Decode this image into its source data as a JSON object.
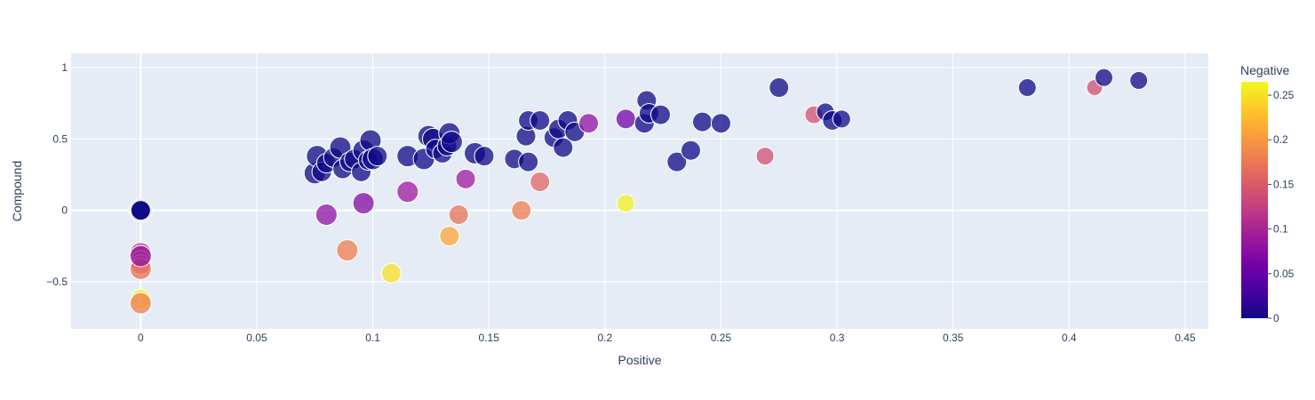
{
  "chart_data": {
    "type": "scatter",
    "title": "",
    "xlabel": "Positive",
    "ylabel": "Compound",
    "xlim": [
      -0.03,
      0.46
    ],
    "ylim": [
      -0.83,
      1.1
    ],
    "xticks": [
      0,
      0.05,
      0.1,
      0.15,
      0.2,
      0.25,
      0.3,
      0.35,
      0.4,
      0.45
    ],
    "xtick_labels": [
      "0",
      "0.05",
      "0.1",
      "0.15",
      "0.2",
      "0.25",
      "0.3",
      "0.35",
      "0.4",
      "0.45"
    ],
    "yticks": [
      -0.5,
      0,
      0.5,
      1
    ],
    "ytick_labels": [
      "−0.5",
      "0",
      "0.5",
      "1"
    ],
    "grid": true,
    "colorbar": {
      "title": "Negative",
      "range": [
        0,
        0.265
      ],
      "ticks": [
        0,
        0.05,
        0.1,
        0.15,
        0.2,
        0.25
      ],
      "tick_labels": [
        "0",
        "0.05",
        "0.1",
        "0.15",
        "0.2",
        "0.25"
      ],
      "colorscale": [
        "#0d0887",
        "#46039f",
        "#7201a8",
        "#9c179e",
        "#bd3786",
        "#d8576b",
        "#ed7953",
        "#fb9f3a",
        "#fdca26",
        "#f0f921"
      ]
    },
    "points": [
      {
        "x": 0,
        "y": 0,
        "neg": 0,
        "size": 13
      },
      {
        "x": 0,
        "y": 0,
        "neg": 0,
        "size": 12
      },
      {
        "x": 0,
        "y": 0,
        "neg": 0,
        "size": 11
      },
      {
        "x": 0,
        "y": -0.3,
        "neg": 0.12,
        "size": 12
      },
      {
        "x": 0,
        "y": -0.35,
        "neg": 0.17,
        "size": 11
      },
      {
        "x": 0,
        "y": -0.38,
        "neg": 0.16,
        "size": 11
      },
      {
        "x": 0,
        "y": -0.41,
        "neg": 0.17,
        "size": 12
      },
      {
        "x": 0,
        "y": -0.32,
        "neg": 0.08,
        "size": 12
      },
      {
        "x": 0,
        "y": -0.62,
        "neg": 0.26,
        "size": 11
      },
      {
        "x": 0,
        "y": -0.65,
        "neg": 0.18,
        "size": 12
      },
      {
        "x": 0.075,
        "y": 0.26,
        "neg": 0,
        "size": 12
      },
      {
        "x": 0.076,
        "y": 0.38,
        "neg": 0,
        "size": 12
      },
      {
        "x": 0.078,
        "y": 0.27,
        "neg": 0,
        "size": 11
      },
      {
        "x": 0.08,
        "y": 0.33,
        "neg": 0,
        "size": 11
      },
      {
        "x": 0.083,
        "y": 0.37,
        "neg": 0,
        "size": 11
      },
      {
        "x": 0.086,
        "y": 0.44,
        "neg": 0,
        "size": 12
      },
      {
        "x": 0.087,
        "y": 0.29,
        "neg": 0,
        "size": 11
      },
      {
        "x": 0.09,
        "y": 0.34,
        "neg": 0,
        "size": 11
      },
      {
        "x": 0.092,
        "y": 0.36,
        "neg": 0,
        "size": 11
      },
      {
        "x": 0.095,
        "y": 0.27,
        "neg": 0,
        "size": 11
      },
      {
        "x": 0.096,
        "y": 0.42,
        "neg": 0,
        "size": 12
      },
      {
        "x": 0.098,
        "y": 0.35,
        "neg": 0,
        "size": 11
      },
      {
        "x": 0.099,
        "y": 0.49,
        "neg": 0,
        "size": 12
      },
      {
        "x": 0.1,
        "y": 0.36,
        "neg": 0,
        "size": 12
      },
      {
        "x": 0.102,
        "y": 0.38,
        "neg": 0,
        "size": 11
      },
      {
        "x": 0.08,
        "y": -0.03,
        "neg": 0.08,
        "size": 12
      },
      {
        "x": 0.096,
        "y": 0.05,
        "neg": 0.07,
        "size": 12
      },
      {
        "x": 0.089,
        "y": -0.28,
        "neg": 0.18,
        "size": 12
      },
      {
        "x": 0.108,
        "y": -0.44,
        "neg": 0.25,
        "size": 11
      },
      {
        "x": 0.115,
        "y": 0.38,
        "neg": 0,
        "size": 12
      },
      {
        "x": 0.115,
        "y": 0.13,
        "neg": 0.09,
        "size": 12
      },
      {
        "x": 0.122,
        "y": 0.36,
        "neg": 0,
        "size": 12
      },
      {
        "x": 0.124,
        "y": 0.52,
        "neg": 0,
        "size": 12
      },
      {
        "x": 0.126,
        "y": 0.5,
        "neg": 0,
        "size": 12
      },
      {
        "x": 0.127,
        "y": 0.43,
        "neg": 0,
        "size": 11
      },
      {
        "x": 0.13,
        "y": 0.4,
        "neg": 0,
        "size": 11
      },
      {
        "x": 0.132,
        "y": 0.45,
        "neg": 0,
        "size": 11
      },
      {
        "x": 0.133,
        "y": 0.54,
        "neg": 0,
        "size": 12
      },
      {
        "x": 0.134,
        "y": 0.48,
        "neg": 0,
        "size": 12
      },
      {
        "x": 0.133,
        "y": -0.18,
        "neg": 0.21,
        "size": 11
      },
      {
        "x": 0.137,
        "y": -0.03,
        "neg": 0.17,
        "size": 11
      },
      {
        "x": 0.14,
        "y": 0.22,
        "neg": 0.09,
        "size": 11
      },
      {
        "x": 0.144,
        "y": 0.4,
        "neg": 0,
        "size": 12
      },
      {
        "x": 0.148,
        "y": 0.38,
        "neg": 0,
        "size": 11
      },
      {
        "x": 0.161,
        "y": 0.36,
        "neg": 0,
        "size": 11
      },
      {
        "x": 0.164,
        "y": 0,
        "neg": 0.18,
        "size": 11
      },
      {
        "x": 0.166,
        "y": 0.52,
        "neg": 0,
        "size": 11
      },
      {
        "x": 0.167,
        "y": 0.34,
        "neg": 0,
        "size": 11
      },
      {
        "x": 0.167,
        "y": 0.63,
        "neg": 0,
        "size": 11
      },
      {
        "x": 0.172,
        "y": 0.2,
        "neg": 0.16,
        "size": 11
      },
      {
        "x": 0.172,
        "y": 0.63,
        "neg": 0,
        "size": 11
      },
      {
        "x": 0.178,
        "y": 0.51,
        "neg": 0,
        "size": 11
      },
      {
        "x": 0.18,
        "y": 0.57,
        "neg": 0,
        "size": 11
      },
      {
        "x": 0.182,
        "y": 0.44,
        "neg": 0,
        "size": 11
      },
      {
        "x": 0.184,
        "y": 0.63,
        "neg": 0,
        "size": 11
      },
      {
        "x": 0.187,
        "y": 0.55,
        "neg": 0,
        "size": 11
      },
      {
        "x": 0.193,
        "y": 0.61,
        "neg": 0.08,
        "size": 11
      },
      {
        "x": 0.209,
        "y": 0.64,
        "neg": 0.06,
        "size": 11
      },
      {
        "x": 0.209,
        "y": 0.05,
        "neg": 0.26,
        "size": 10
      },
      {
        "x": 0.217,
        "y": 0.61,
        "neg": 0,
        "size": 11
      },
      {
        "x": 0.218,
        "y": 0.77,
        "neg": 0,
        "size": 11
      },
      {
        "x": 0.219,
        "y": 0.68,
        "neg": 0,
        "size": 11
      },
      {
        "x": 0.224,
        "y": 0.67,
        "neg": 0,
        "size": 11
      },
      {
        "x": 0.231,
        "y": 0.34,
        "neg": 0,
        "size": 11
      },
      {
        "x": 0.237,
        "y": 0.42,
        "neg": 0,
        "size": 11
      },
      {
        "x": 0.242,
        "y": 0.62,
        "neg": 0,
        "size": 11
      },
      {
        "x": 0.25,
        "y": 0.61,
        "neg": 0,
        "size": 11
      },
      {
        "x": 0.269,
        "y": 0.38,
        "neg": 0.14,
        "size": 10
      },
      {
        "x": 0.275,
        "y": 0.86,
        "neg": 0,
        "size": 11
      },
      {
        "x": 0.29,
        "y": 0.67,
        "neg": 0.14,
        "size": 10
      },
      {
        "x": 0.295,
        "y": 0.69,
        "neg": 0,
        "size": 10
      },
      {
        "x": 0.298,
        "y": 0.63,
        "neg": 0,
        "size": 11
      },
      {
        "x": 0.302,
        "y": 0.64,
        "neg": 0,
        "size": 10
      },
      {
        "x": 0.382,
        "y": 0.86,
        "neg": 0,
        "size": 10
      },
      {
        "x": 0.411,
        "y": 0.86,
        "neg": 0.14,
        "size": 9
      },
      {
        "x": 0.415,
        "y": 0.93,
        "neg": 0,
        "size": 10
      },
      {
        "x": 0.43,
        "y": 0.91,
        "neg": 0,
        "size": 10
      }
    ]
  }
}
